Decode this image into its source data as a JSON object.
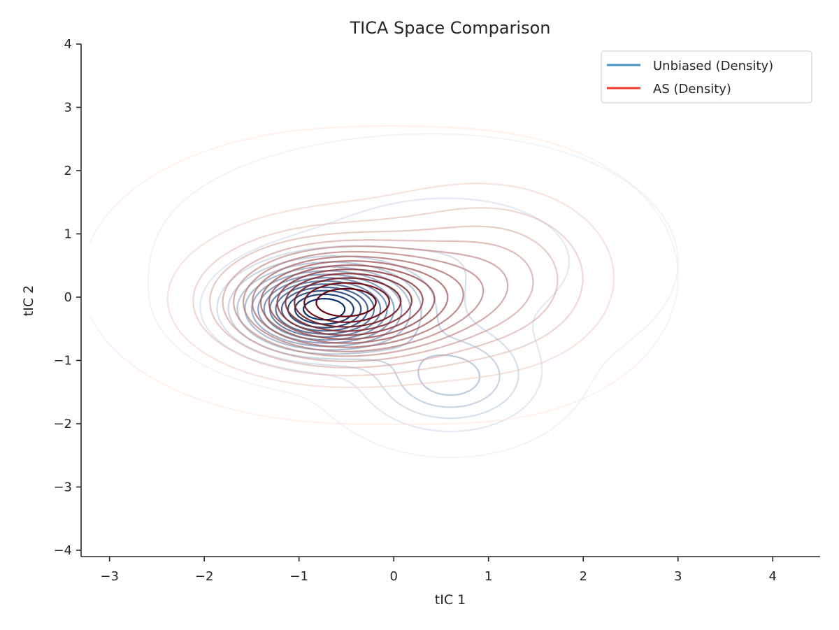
{
  "chart_data": {
    "type": "contour",
    "title": "TICA Space Comparison",
    "xlabel": "tIC 1",
    "ylabel": "tIC 2",
    "xlim": [
      -3.3,
      4.5
    ],
    "ylim": [
      -4.1,
      4.0
    ],
    "xticks": [
      -3,
      -2,
      -1,
      0,
      1,
      2,
      3,
      4
    ],
    "yticks": [
      -4,
      -3,
      -2,
      -1,
      0,
      1,
      2,
      3,
      4
    ],
    "xtick_labels": [
      "−3",
      "−2",
      "−1",
      "0",
      "1",
      "2",
      "3",
      "4"
    ],
    "ytick_labels": [
      "−4",
      "−3",
      "−2",
      "−1",
      "0",
      "1",
      "2",
      "3",
      "4"
    ],
    "grid": false,
    "legend_position": "top-right",
    "series": [
      {
        "name": "Unbiased (Density)",
        "legend_color": "#4393c3",
        "colormap": [
          "#dbe9f6",
          "#08306b"
        ],
        "components": [
          {
            "mx": -0.75,
            "my": -0.2,
            "sx": 0.55,
            "sy": 0.42,
            "w": 1.0
          },
          {
            "mx": 0.6,
            "my": -1.3,
            "sx": 0.55,
            "sy": 0.5,
            "w": 0.32
          },
          {
            "mx": 1.0,
            "my": 0.55,
            "sx": 1.0,
            "sy": 0.9,
            "w": 0.09
          },
          {
            "mx": -0.2,
            "my": 0.6,
            "sx": 1.3,
            "sy": 1.0,
            "w": 0.08
          }
        ]
      },
      {
        "name": "AS (Density)",
        "legend_color": "#ef3b2c",
        "colormap": [
          "#fee0d2",
          "#67000d"
        ],
        "components": [
          {
            "mx": -0.55,
            "my": -0.1,
            "sx": 0.75,
            "sy": 0.55,
            "w": 1.0
          },
          {
            "mx": 1.1,
            "my": 0.3,
            "sx": 0.75,
            "sy": 0.85,
            "w": 0.28
          },
          {
            "mx": -0.5,
            "my": 0.4,
            "sx": 1.45,
            "sy": 1.2,
            "w": 0.1
          }
        ]
      }
    ]
  }
}
